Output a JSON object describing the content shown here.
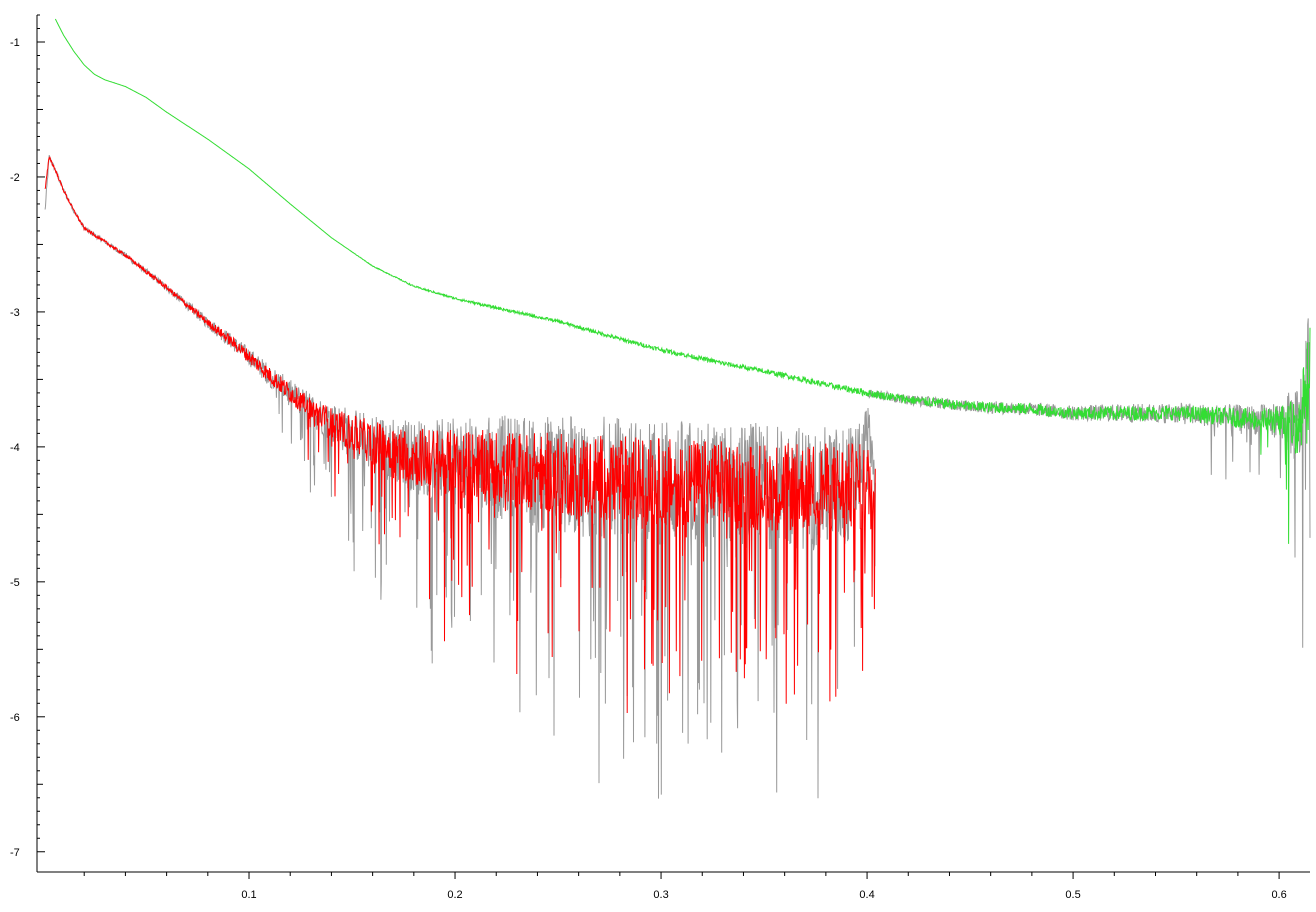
{
  "chart_data": {
    "type": "line",
    "title": "",
    "xlabel": "",
    "ylabel": "",
    "xlim": [
      0.0,
      0.615
    ],
    "ylim": [
      -7.15,
      -0.8
    ],
    "x_ticks": [
      0.1,
      0.2,
      0.3,
      0.4,
      0.5,
      0.6
    ],
    "x_tick_labels": [
      "0.1",
      "0.2",
      "0.3",
      "0.4",
      "0.5",
      "0.6"
    ],
    "y_ticks": [
      -1,
      -2,
      -3,
      -4,
      -5,
      -6,
      -7
    ],
    "y_tick_labels": [
      "-1",
      "-2",
      "-3",
      "-4",
      "-5",
      "-6",
      "-7"
    ],
    "grid": false,
    "legend": "none",
    "series": [
      {
        "color": "#999999",
        "x": [
          0.001,
          0.003,
          0.006,
          0.01,
          0.015,
          0.02,
          0.03,
          0.04,
          0.05,
          0.06,
          0.07,
          0.08,
          0.09,
          0.1,
          0.11,
          0.12,
          0.13,
          0.14,
          0.15,
          0.16,
          0.17,
          0.18,
          0.2,
          0.22,
          0.25,
          0.28,
          0.3,
          0.33,
          0.36,
          0.38,
          0.39,
          0.398,
          0.4,
          0.404
        ],
        "y": [
          -2.25,
          -1.85,
          -1.95,
          -2.1,
          -2.25,
          -2.38,
          -2.48,
          -2.58,
          -2.7,
          -2.82,
          -2.95,
          -3.08,
          -3.2,
          -3.33,
          -3.47,
          -3.6,
          -3.72,
          -3.82,
          -3.9,
          -3.97,
          -4.02,
          -4.07,
          -4.12,
          -4.15,
          -4.2,
          -4.24,
          -4.26,
          -4.28,
          -4.3,
          -4.3,
          -4.3,
          -4.1,
          -3.8,
          -4.2
        ],
        "noise": [
          0.05,
          0.04,
          0.03,
          0.03,
          0.03,
          0.03,
          0.03,
          0.04,
          0.04,
          0.05,
          0.06,
          0.08,
          0.1,
          0.12,
          0.15,
          0.18,
          0.22,
          0.28,
          0.35,
          0.4,
          0.45,
          0.5,
          0.6,
          0.7,
          0.8,
          0.85,
          0.85,
          0.85,
          0.85,
          0.85,
          0.85,
          0.5,
          0.3,
          0.3
        ]
      },
      {
        "color": "#ff0000",
        "x": [
          0.001,
          0.003,
          0.006,
          0.01,
          0.015,
          0.02,
          0.03,
          0.04,
          0.05,
          0.06,
          0.07,
          0.08,
          0.09,
          0.1,
          0.11,
          0.12,
          0.13,
          0.14,
          0.15,
          0.16,
          0.17,
          0.18,
          0.2,
          0.22,
          0.25,
          0.28,
          0.3,
          0.33,
          0.36,
          0.38,
          0.39,
          0.398,
          0.4,
          0.404
        ],
        "y": [
          -2.1,
          -1.85,
          -1.95,
          -2.1,
          -2.25,
          -2.38,
          -2.48,
          -2.58,
          -2.7,
          -2.82,
          -2.95,
          -3.08,
          -3.2,
          -3.33,
          -3.47,
          -3.6,
          -3.72,
          -3.82,
          -3.9,
          -3.97,
          -4.02,
          -4.07,
          -4.12,
          -4.15,
          -4.2,
          -4.24,
          -4.26,
          -4.28,
          -4.3,
          -4.3,
          -4.3,
          -4.3,
          -4.3,
          -4.3
        ],
        "noise": [
          0.03,
          0.02,
          0.02,
          0.02,
          0.02,
          0.02,
          0.02,
          0.02,
          0.03,
          0.03,
          0.04,
          0.05,
          0.07,
          0.09,
          0.11,
          0.13,
          0.16,
          0.2,
          0.25,
          0.3,
          0.35,
          0.4,
          0.45,
          0.5,
          0.55,
          0.6,
          0.6,
          0.6,
          0.6,
          0.6,
          0.6,
          0.6,
          0.6,
          0.6
        ]
      },
      {
        "color": "#999999",
        "x": [
          0.4,
          0.42,
          0.45,
          0.48,
          0.5,
          0.52,
          0.55,
          0.57,
          0.59,
          0.6,
          0.61,
          0.615
        ],
        "y": [
          -3.6,
          -3.65,
          -3.7,
          -3.72,
          -3.75,
          -3.75,
          -3.75,
          -3.77,
          -3.8,
          -3.8,
          -3.85,
          -3.2
        ],
        "noise": [
          0.06,
          0.07,
          0.08,
          0.09,
          0.1,
          0.12,
          0.14,
          0.16,
          0.2,
          0.25,
          0.6,
          0.6
        ]
      },
      {
        "color": "#33dd33",
        "x": [
          0.006,
          0.01,
          0.015,
          0.02,
          0.025,
          0.03,
          0.04,
          0.05,
          0.06,
          0.08,
          0.1,
          0.12,
          0.14,
          0.16,
          0.18,
          0.2,
          0.22,
          0.25,
          0.28,
          0.3,
          0.33,
          0.36,
          0.38,
          0.4,
          0.42,
          0.45,
          0.48,
          0.5,
          0.52,
          0.55,
          0.57,
          0.59,
          0.6,
          0.61,
          0.615
        ],
        "y": [
          -0.83,
          -0.95,
          -1.07,
          -1.17,
          -1.24,
          -1.28,
          -1.33,
          -1.41,
          -1.52,
          -1.72,
          -1.94,
          -2.2,
          -2.45,
          -2.66,
          -2.81,
          -2.9,
          -2.97,
          -3.07,
          -3.2,
          -3.28,
          -3.38,
          -3.47,
          -3.54,
          -3.6,
          -3.65,
          -3.7,
          -3.72,
          -3.75,
          -3.75,
          -3.75,
          -3.77,
          -3.8,
          -3.8,
          -3.85,
          -3.3
        ],
        "noise": [
          0,
          0,
          0,
          0,
          0,
          0,
          0,
          0,
          0,
          0,
          0,
          0,
          0,
          0.005,
          0.01,
          0.015,
          0.02,
          0.02,
          0.025,
          0.03,
          0.03,
          0.035,
          0.04,
          0.05,
          0.06,
          0.07,
          0.08,
          0.08,
          0.1,
          0.1,
          0.12,
          0.15,
          0.2,
          0.45,
          0.45
        ]
      }
    ]
  }
}
